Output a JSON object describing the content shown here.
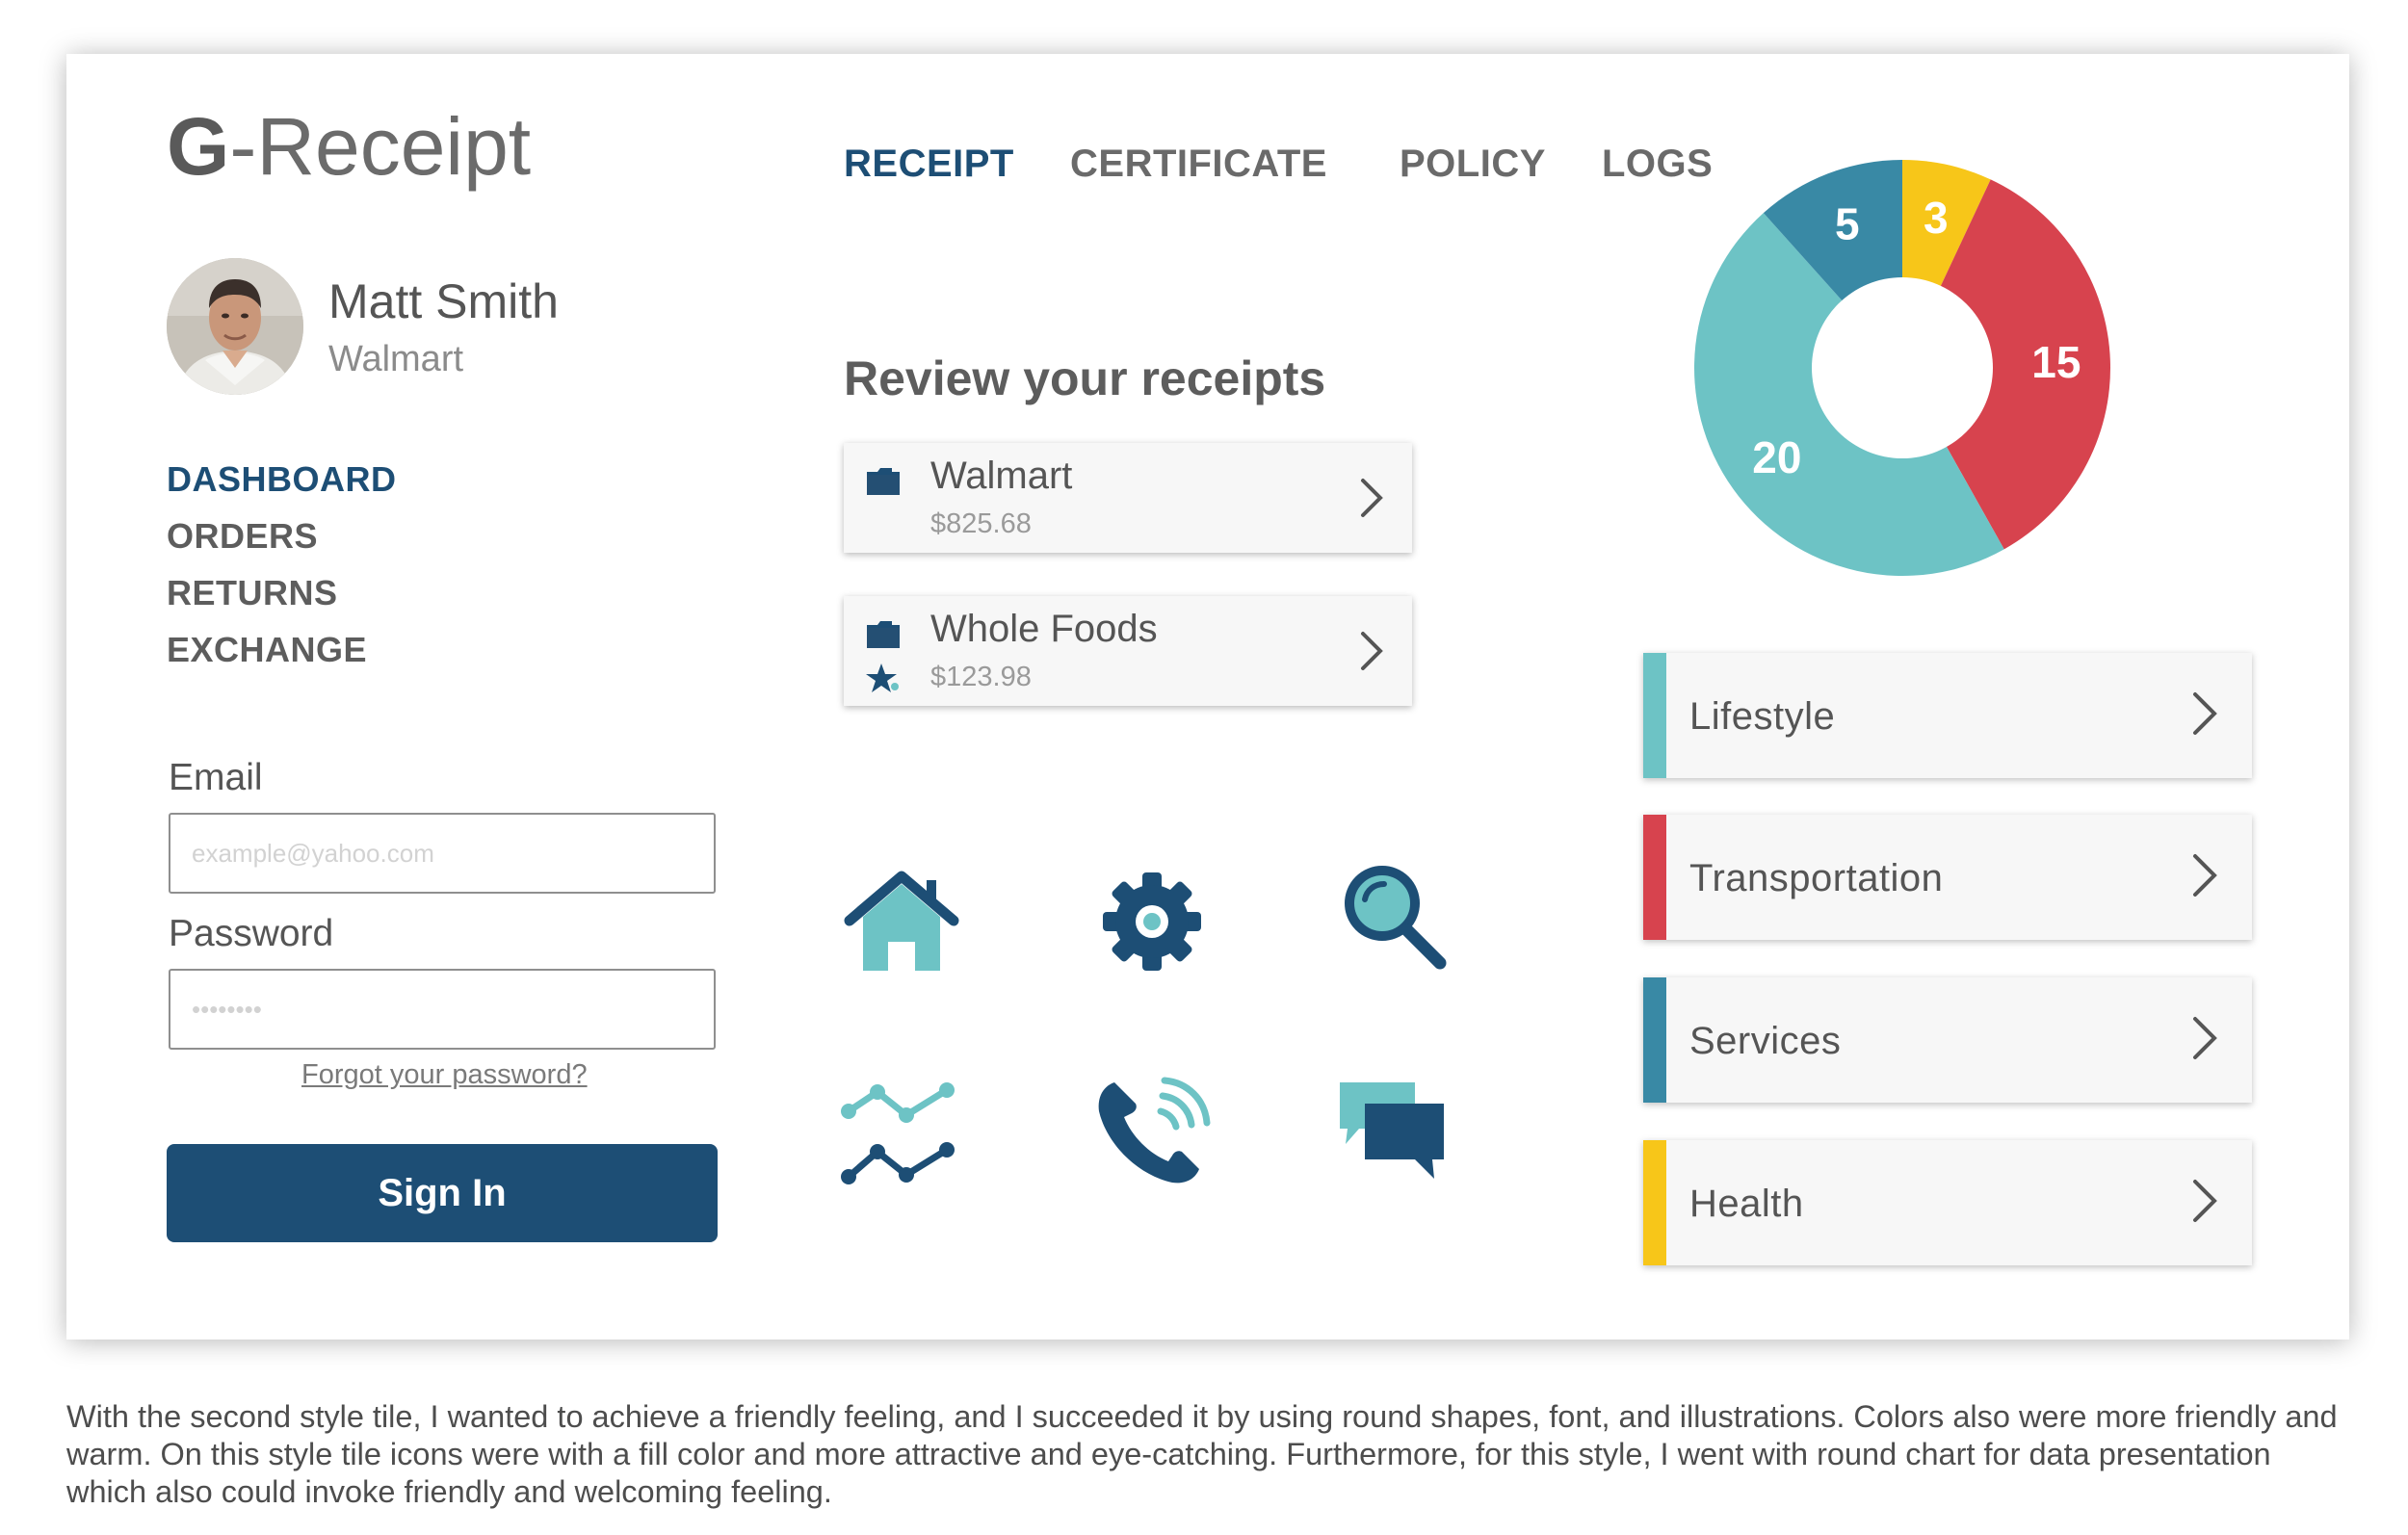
{
  "app": {
    "logo_bold": "G",
    "logo_rest": "-Receipt"
  },
  "user": {
    "name": "Matt Smith",
    "company": "Walmart"
  },
  "sidebar": {
    "items": [
      {
        "label": "DASHBOARD",
        "active": true
      },
      {
        "label": "ORDERS",
        "active": false
      },
      {
        "label": "RETURNS",
        "active": false
      },
      {
        "label": "EXCHANGE",
        "active": false
      }
    ]
  },
  "login": {
    "email_label": "Email",
    "email_placeholder": "example@yahoo.com",
    "password_label": "Password",
    "password_placeholder": "••••••••",
    "forgot_label": "Forgot your password?",
    "signin_label": "Sign In"
  },
  "top_nav": {
    "tabs": [
      "RECEIPT",
      "CERTIFICATE",
      "POLICY",
      "LOGS"
    ],
    "active": "RECEIPT"
  },
  "review": {
    "title": "Review your receipts",
    "receipts": [
      {
        "name": "Walmart",
        "amount": "$825.68",
        "starred": false
      },
      {
        "name": "Whole Foods",
        "amount": "$123.98",
        "starred": true
      }
    ]
  },
  "icons": [
    "home-icon",
    "gear-icon",
    "search-icon",
    "line-chart-icon",
    "phone-icon",
    "chat-icon"
  ],
  "chart_data": {
    "type": "pie",
    "variant": "donut",
    "slices": [
      {
        "label": "3",
        "value": 3,
        "color": "#f7c619"
      },
      {
        "label": "15",
        "value": 15,
        "color": "#d7434e"
      },
      {
        "label": "20",
        "value": 20,
        "color": "#6dc3c5"
      },
      {
        "label": "5",
        "value": 5,
        "color": "#3989a5"
      }
    ],
    "title": "",
    "legend": "none"
  },
  "categories": [
    {
      "label": "Lifestyle",
      "color": "#6dc3c5"
    },
    {
      "label": "Transportation",
      "color": "#d7434e"
    },
    {
      "label": "Services",
      "color": "#3989a5"
    },
    {
      "label": "Health",
      "color": "#f7c619"
    }
  ],
  "colors": {
    "primary": "#1d4e75",
    "teal": "#6dc3c5"
  },
  "caption": "With the second style tile, I wanted to achieve a friendly feeling, and I succeeded it by using round shapes, font, and illustrations. Colors also were more friendly and warm. On this style tile icons were with a fill color and more attractive and eye-catching. Furthermore, for this style, I went with round chart for data presentation which also could invoke friendly and welcoming feeling."
}
